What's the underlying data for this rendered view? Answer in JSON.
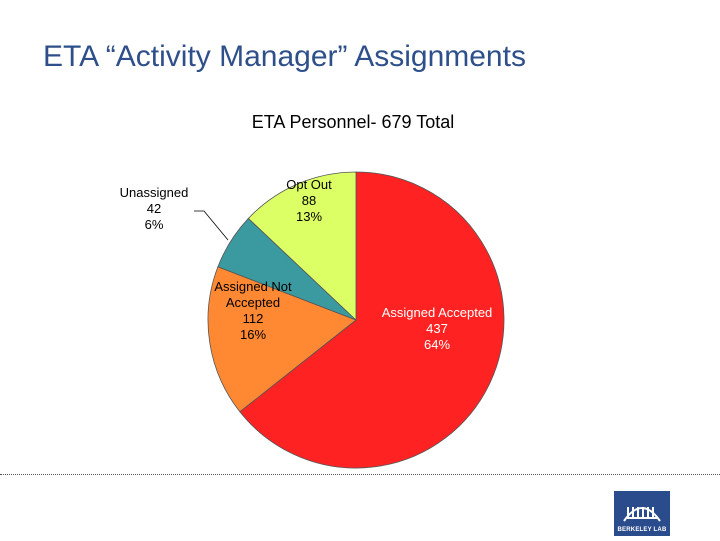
{
  "slide": {
    "title": "ETA “Activity Manager” Assignments"
  },
  "chart_data": {
    "type": "pie",
    "title": "ETA Personnel- 679 Total",
    "slices": [
      {
        "label": "Assigned Accepted",
        "value": 437,
        "percent": "64%",
        "color": "#ff2222"
      },
      {
        "label": "Assigned Not Accepted",
        "value": 112,
        "percent": "16%",
        "color": "#ff8833"
      },
      {
        "label": "Unassigned",
        "value": 42,
        "percent": "6%",
        "color": "#3a9aa0"
      },
      {
        "label": "Opt Out",
        "value": 88,
        "percent": "13%",
        "color": "#ddff66"
      }
    ]
  },
  "logo": {
    "text": "BERKELEY LAB",
    "color": "#2b4c8c"
  }
}
